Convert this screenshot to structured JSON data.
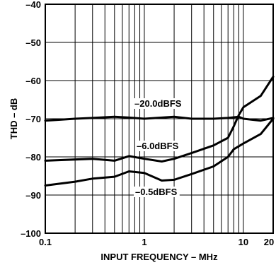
{
  "chart_data": {
    "type": "line",
    "title": "",
    "xlabel": "INPUT FREQUENCY – MHz",
    "ylabel": "THD – dB",
    "xscale": "log",
    "xlim": [
      0.1,
      20
    ],
    "ylim": [
      -100,
      -40
    ],
    "grid": true,
    "legend": "inline",
    "x_ticks": [
      {
        "value": 0.1,
        "label": "0.1"
      },
      {
        "value": 1,
        "label": "1"
      },
      {
        "value": 10,
        "label": "10"
      },
      {
        "value": 20,
        "label": "20"
      }
    ],
    "y_ticks": [
      {
        "value": -40,
        "label": "–40"
      },
      {
        "value": -50,
        "label": "–50"
      },
      {
        "value": -60,
        "label": "–60"
      },
      {
        "value": -70,
        "label": "–70"
      },
      {
        "value": -80,
        "label": "–80"
      },
      {
        "value": -90,
        "label": "–90"
      },
      {
        "value": -100,
        "label": "–100"
      }
    ],
    "series": [
      {
        "name": "–20.0dBFS",
        "x": [
          0.1,
          0.2,
          0.3,
          0.5,
          0.7,
          1,
          2,
          3,
          5,
          7,
          9,
          10,
          15,
          20
        ],
        "y": [
          -70.5,
          -70,
          -69.8,
          -69.5,
          -69.7,
          -70,
          -69.5,
          -70,
          -70,
          -69.8,
          -69.5,
          -70,
          -70.5,
          -69.8
        ]
      },
      {
        "name": "–6.0dBFS",
        "x": [
          0.1,
          0.3,
          0.5,
          0.7,
          1,
          1.5,
          2,
          3,
          5,
          7,
          8,
          9,
          10,
          15,
          20
        ],
        "y": [
          -81,
          -80.5,
          -81,
          -79.8,
          -80.5,
          -81.2,
          -80.5,
          -79,
          -77,
          -75,
          -72,
          -69,
          -67,
          -64,
          -59
        ]
      },
      {
        "name": "–0.5dBFS",
        "x": [
          0.1,
          0.2,
          0.3,
          0.5,
          0.7,
          1,
          1.5,
          2,
          3,
          5,
          7,
          8,
          10,
          15,
          20
        ],
        "y": [
          -87.5,
          -86.5,
          -85.7,
          -85.2,
          -83.8,
          -84.2,
          -86.2,
          -86,
          -84.5,
          -82.5,
          -80,
          -78,
          -76.5,
          -74,
          -70
        ]
      }
    ],
    "annotations": [
      {
        "text": "–20.0dBFS",
        "series": 0
      },
      {
        "text": "–6.0dBFS",
        "series": 1
      },
      {
        "text": "–0.5dBFS",
        "series": 2
      }
    ]
  }
}
